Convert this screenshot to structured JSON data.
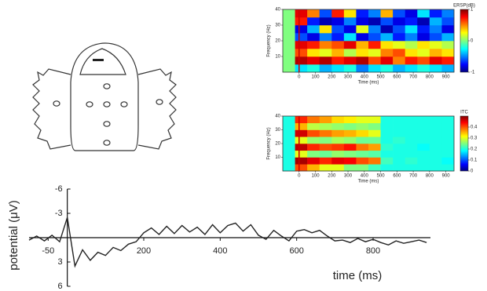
{
  "chart_data": [
    {
      "type": "heatmap",
      "xlabel": "Time (ms)",
      "ylabel": "Frequency (Hz)",
      "colorbar_label": "ERSP(dB)",
      "x": [
        -62.5,
        12.5,
        87.5,
        162.5,
        237.5,
        312.5,
        387.5,
        462.5,
        537.5,
        612.5,
        687.5,
        762.5,
        837.5,
        912.5
      ],
      "y": [
        2.5,
        7.5,
        12.5,
        17.5,
        22.5,
        27.5,
        32.5,
        37.5
      ],
      "xlim": [
        -100,
        950
      ],
      "ylim": [
        0,
        40
      ],
      "xticks": [
        0,
        100,
        200,
        300,
        400,
        500,
        600,
        700,
        800,
        900
      ],
      "yticks": [
        10,
        20,
        30,
        40
      ],
      "clim": [
        -1,
        1
      ],
      "cticks": [
        -1,
        0,
        1
      ],
      "z": [
        [
          0,
          -0.3,
          -0.2,
          -0.4,
          -0.3,
          -0.2,
          -0.5,
          -0.3,
          -0.2,
          -0.4,
          -0.3,
          -0.2,
          -0.3,
          -0.4
        ],
        [
          0,
          0.9,
          0.8,
          0.9,
          0.7,
          0.8,
          0.9,
          0.6,
          0.8,
          0.5,
          0.7,
          0.6,
          0.8,
          0.7
        ],
        [
          0,
          0.6,
          0.3,
          0.2,
          0.4,
          0.1,
          0.3,
          0.2,
          0.5,
          0.6,
          0.3,
          0.2,
          0.4,
          0.3
        ],
        [
          0,
          0.8,
          0.7,
          0.5,
          0.6,
          0.8,
          0.4,
          0.7,
          0.3,
          0.2,
          0.1,
          0.3,
          0.2,
          0.1
        ],
        [
          0,
          -0.6,
          -0.8,
          -0.5,
          -0.7,
          -0.3,
          -0.8,
          -0.6,
          -0.4,
          -0.7,
          -0.5,
          -0.8,
          -0.6,
          -0.4
        ],
        [
          0,
          -0.8,
          -0.4,
          0.3,
          -0.6,
          -0.8,
          0.2,
          -0.5,
          -0.9,
          -0.6,
          -0.3,
          -0.7,
          -0.5,
          -0.8
        ],
        [
          0,
          0.7,
          -0.7,
          -0.9,
          -0.8,
          -0.5,
          -0.8,
          -0.9,
          -0.6,
          -0.8,
          -0.7,
          -0.9,
          -0.4,
          -0.6
        ],
        [
          0,
          0.8,
          0.5,
          -0.6,
          0.7,
          0.3,
          -0.7,
          -0.5,
          0.4,
          -0.6,
          -0.8,
          -0.3,
          -0.7,
          -0.5
        ]
      ]
    },
    {
      "type": "heatmap",
      "xlabel": "Time (ms)",
      "ylabel": "Frequency (Hz)",
      "colorbar_label": "ITC",
      "x": [
        -62.5,
        12.5,
        87.5,
        162.5,
        237.5,
        312.5,
        387.5,
        462.5,
        537.5,
        612.5,
        687.5,
        762.5,
        837.5,
        912.5
      ],
      "y": [
        2.5,
        7.5,
        12.5,
        17.5,
        22.5,
        27.5,
        32.5,
        37.5
      ],
      "xlim": [
        -100,
        950
      ],
      "ylim": [
        0,
        40
      ],
      "xticks": [
        0,
        100,
        200,
        300,
        400,
        500,
        600,
        700,
        800,
        900
      ],
      "yticks": [
        10,
        20,
        30,
        40
      ],
      "clim": [
        0,
        0.5
      ],
      "cticks": [
        0,
        0.1,
        0.2,
        0.3,
        0.4
      ],
      "z": [
        [
          0.2,
          0.4,
          0.35,
          0.3,
          0.3,
          0.25,
          0.25,
          0.22,
          0.2,
          0.2,
          0.2,
          0.2,
          0.2,
          0.2
        ],
        [
          0.2,
          0.48,
          0.45,
          0.42,
          0.45,
          0.44,
          0.4,
          0.38,
          0.22,
          0.2,
          0.21,
          0.2,
          0.2,
          0.19
        ],
        [
          0.2,
          0.3,
          0.25,
          0.24,
          0.26,
          0.25,
          0.24,
          0.23,
          0.2,
          0.2,
          0.2,
          0.2,
          0.2,
          0.2
        ],
        [
          0.2,
          0.47,
          0.42,
          0.4,
          0.41,
          0.43,
          0.38,
          0.36,
          0.21,
          0.2,
          0.2,
          0.19,
          0.2,
          0.2
        ],
        [
          0.2,
          0.3,
          0.26,
          0.25,
          0.27,
          0.26,
          0.24,
          0.24,
          0.2,
          0.21,
          0.2,
          0.2,
          0.2,
          0.2
        ],
        [
          0.2,
          0.46,
          0.4,
          0.38,
          0.36,
          0.35,
          0.33,
          0.3,
          0.2,
          0.2,
          0.2,
          0.2,
          0.2,
          0.2
        ],
        [
          0.2,
          0.35,
          0.28,
          0.27,
          0.26,
          0.25,
          0.26,
          0.25,
          0.2,
          0.2,
          0.2,
          0.2,
          0.2,
          0.2
        ],
        [
          0.2,
          0.42,
          0.38,
          0.36,
          0.33,
          0.32,
          0.3,
          0.3,
          0.2,
          0.2,
          0.2,
          0.2,
          0.2,
          0.2
        ]
      ]
    },
    {
      "type": "line",
      "xlabel": "time (ms)",
      "ylabel": "potential (μV)",
      "color": "#222222",
      "x": [
        -100,
        -80,
        -60,
        -40,
        -20,
        0,
        20,
        40,
        60,
        80,
        100,
        120,
        140,
        160,
        180,
        200,
        220,
        240,
        260,
        280,
        300,
        320,
        340,
        360,
        380,
        400,
        420,
        440,
        460,
        480,
        500,
        520,
        540,
        560,
        580,
        600,
        620,
        640,
        660,
        680,
        700,
        720,
        740,
        760,
        780,
        800,
        820,
        840,
        860,
        880,
        900,
        920,
        940
      ],
      "values": [
        0.3,
        -0.2,
        0.4,
        -0.3,
        0.5,
        -2.5,
        3.5,
        1.5,
        2.8,
        1.8,
        2.2,
        1.2,
        1.6,
        0.8,
        0.5,
        -0.6,
        -1.2,
        -0.4,
        -1.4,
        -0.5,
        -1.5,
        -0.7,
        -1.3,
        -0.4,
        -1.6,
        -0.6,
        -1.5,
        -1.8,
        -0.8,
        -1.6,
        -0.3,
        0.2,
        -0.9,
        -0.2,
        0.4,
        -0.8,
        -1.0,
        -0.6,
        -0.9,
        -0.2,
        0.4,
        0.3,
        0.6,
        0.1,
        0.5,
        0.2,
        0.6,
        0.9,
        0.4,
        0.7,
        0.5,
        0.3,
        0.6
      ],
      "xlim": [
        -100,
        950
      ],
      "ylim": [
        6,
        -6
      ],
      "xticks": [
        -50,
        200,
        400,
        600,
        800
      ],
      "yticks": [
        -6,
        -3,
        3,
        6
      ]
    }
  ]
}
